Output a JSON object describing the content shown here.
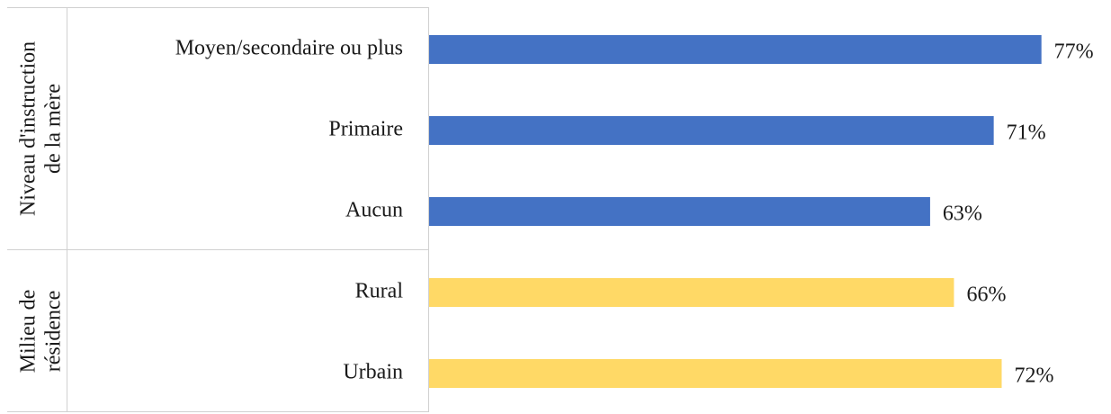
{
  "chart_data": {
    "type": "bar",
    "orientation": "horizontal",
    "title": "",
    "xlabel": "",
    "ylabel": "",
    "xlim": [
      0,
      100
    ],
    "value_suffix": "%",
    "grid": false,
    "legend": "none",
    "groups": [
      {
        "label_lines": [
          "Niveau d'instruction",
          "de la mère"
        ],
        "color": "#4472C4",
        "categories": [
          "Moyen/secondaire ou plus",
          "Primaire",
          "Aucun"
        ],
        "values": [
          77,
          71,
          63
        ],
        "value_labels": [
          "77%",
          "71%",
          "63%"
        ]
      },
      {
        "label_lines": [
          "Milieu de",
          "résidence"
        ],
        "color": "#FFD966",
        "categories": [
          "Rural",
          "Urbain"
        ],
        "values": [
          66,
          72
        ],
        "value_labels": [
          "66%",
          "72%"
        ]
      }
    ]
  }
}
